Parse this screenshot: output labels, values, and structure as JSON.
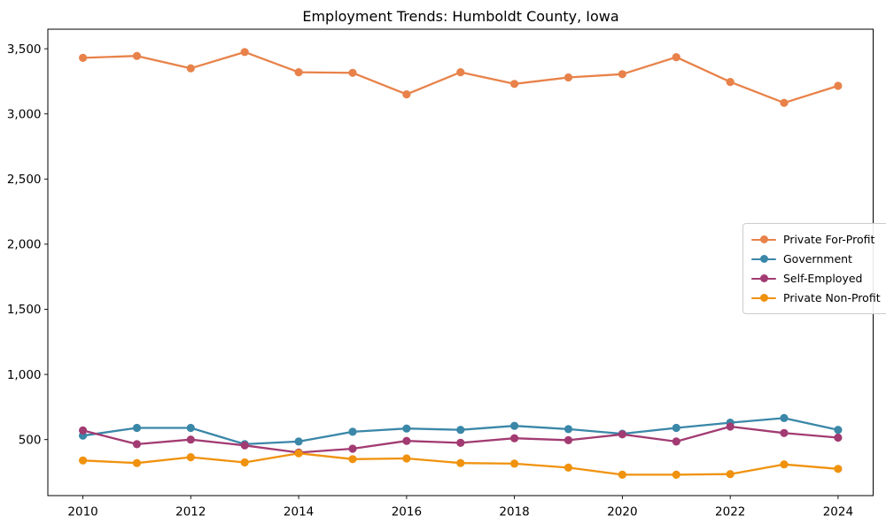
{
  "chart_data": {
    "type": "line",
    "title": "Employment Trends: Humboldt County, Iowa",
    "xlabel": "",
    "ylabel": "",
    "x": [
      2010,
      2011,
      2012,
      2013,
      2014,
      2015,
      2016,
      2017,
      2018,
      2019,
      2020,
      2021,
      2022,
      2023,
      2024
    ],
    "series": [
      {
        "name": "Private For-Profit",
        "color": "#e8824a",
        "values": [
          3430,
          3445,
          3350,
          3475,
          3320,
          3315,
          3150,
          3320,
          3230,
          3280,
          3305,
          3435,
          3245,
          3085,
          3215
        ]
      },
      {
        "name": "Government",
        "color": "#3a87a8",
        "values": [
          530,
          590,
          590,
          465,
          485,
          560,
          585,
          575,
          605,
          580,
          545,
          590,
          630,
          665,
          575
        ]
      },
      {
        "name": "Self-Employed",
        "color": "#a23b72",
        "values": [
          570,
          465,
          500,
          455,
          400,
          430,
          490,
          475,
          510,
          495,
          540,
          485,
          600,
          550,
          515
        ]
      },
      {
        "name": "Private Non-Profit",
        "color": "#f0920e",
        "values": [
          340,
          320,
          365,
          325,
          395,
          350,
          355,
          320,
          315,
          285,
          230,
          230,
          235,
          310,
          275
        ]
      }
    ],
    "xticks": [
      2010,
      2012,
      2014,
      2016,
      2018,
      2020,
      2022,
      2024
    ],
    "yticks": [
      500,
      1000,
      1500,
      2000,
      2500,
      3000,
      3500
    ],
    "ytick_labels": [
      "500",
      "1,000",
      "1,500",
      "2,000",
      "2,500",
      "3,000",
      "3,500"
    ],
    "xlim": [
      2009.35,
      2024.65
    ],
    "ylim": [
      70,
      3650
    ],
    "grid": false,
    "legend_position": "center right"
  }
}
